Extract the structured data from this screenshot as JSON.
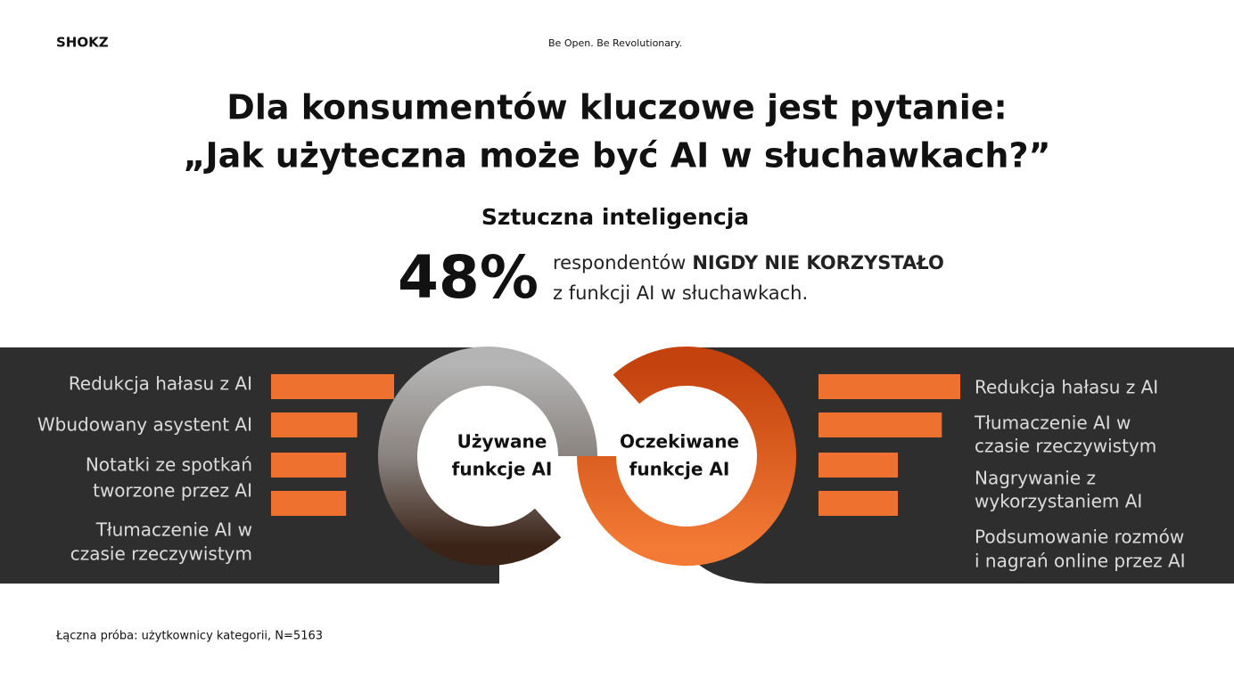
{
  "header": {
    "logo": "SHOKZ",
    "tagline": "Be Open. Be Revolutionary."
  },
  "title": [
    "Dla konsumentów kluczowe jest pytanie:",
    "„Jak użyteczna może być AI w słuchawkach?”"
  ],
  "subtitle": "Sztuczna inteligencja",
  "stat": {
    "value": "48%",
    "line1_normal": "respondentów",
    "line1_bold": "NIGDY NIE KORZYSTAŁO",
    "line2": "z funkcji AI w słuchawkach."
  },
  "used": {
    "label": [
      "Używane",
      "funkcje AI"
    ],
    "items": [
      {
        "label": [
          "Redukcja hałasu z AI"
        ],
        "value": 100
      },
      {
        "label": [
          "Wbudowany asystent AI"
        ],
        "value": 70
      },
      {
        "label": [
          "Notatki ze spotkań",
          "tworzone przez AI"
        ],
        "value": 61
      },
      {
        "label": [
          "Tłumaczenie AI w",
          "czasie rzeczywistym"
        ],
        "value": 61
      }
    ]
  },
  "expected": {
    "label": [
      "Oczekiwane",
      "funkcje AI"
    ],
    "items": [
      {
        "label": [
          "Redukcja hałasu z AI"
        ],
        "value": 100
      },
      {
        "label": [
          "Tłumaczenie AI w",
          "czasie rzeczywistym"
        ],
        "value": 87
      },
      {
        "label": [
          "Nagrywanie z",
          "wykorzystaniem AI"
        ],
        "value": 56
      },
      {
        "label": [
          "Podsumowanie rozmów",
          "i nagrań online przez AI"
        ],
        "value": 56
      }
    ]
  },
  "footer": "Łączna próba: użytkownicy kategorii, N=5163"
}
